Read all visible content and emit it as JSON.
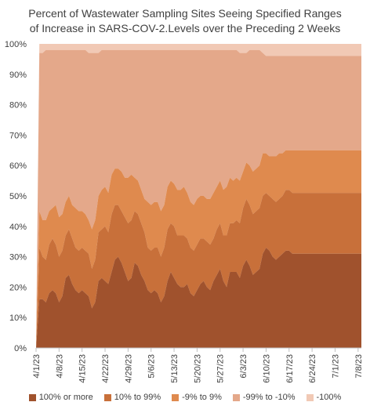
{
  "chart_data": {
    "type": "area",
    "stacked": true,
    "title_line1": "Percent of Wastewater Sampling Sites Seeing Specified Ranges",
    "title_line2": "of Increase in SARS-COV-2.Levels over the Preceding 2 Weeks",
    "xlabel": "",
    "ylabel": "",
    "ylim": [
      0,
      100
    ],
    "y_ticks": [
      "0%",
      "10%",
      "20%",
      "30%",
      "40%",
      "50%",
      "60%",
      "70%",
      "80%",
      "90%",
      "100%"
    ],
    "x_ticks": [
      {
        "label": "4/1/23",
        "day": 0
      },
      {
        "label": "4/8/23",
        "day": 7
      },
      {
        "label": "4/15/23",
        "day": 14
      },
      {
        "label": "4/22/23",
        "day": 21
      },
      {
        "label": "4/29/23",
        "day": 28
      },
      {
        "label": "5/6/23",
        "day": 35
      },
      {
        "label": "5/13/23",
        "day": 42
      },
      {
        "label": "5/20/23",
        "day": 49
      },
      {
        "label": "5/27/23",
        "day": 56
      },
      {
        "label": "6/3/23",
        "day": 63
      },
      {
        "label": "6/10/23",
        "day": 70
      },
      {
        "label": "6/17/23",
        "day": 77
      },
      {
        "label": "6/24/23",
        "day": 84
      },
      {
        "label": "7/1/23",
        "day": 91
      },
      {
        "label": "7/8/23",
        "day": 98
      }
    ],
    "x_days": [
      0,
      1,
      2,
      3,
      4,
      5,
      6,
      7,
      8,
      9,
      10,
      11,
      12,
      13,
      14,
      15,
      16,
      17,
      18,
      19,
      20,
      21,
      22,
      23,
      24,
      25,
      26,
      27,
      28,
      29,
      30,
      31,
      32,
      33,
      34,
      35,
      36,
      37,
      38,
      39,
      40,
      41,
      42,
      43,
      44,
      45,
      46,
      47,
      48,
      49,
      50,
      51,
      52,
      53,
      54,
      55,
      56,
      57,
      58,
      59,
      60,
      61,
      62,
      63,
      64,
      65,
      66,
      67,
      68,
      69,
      70,
      71,
      72,
      73,
      74,
      75,
      76,
      77,
      78,
      79,
      80,
      81,
      82,
      83,
      84,
      85,
      86,
      87,
      88,
      89,
      90,
      91,
      92,
      93,
      94,
      95,
      96,
      97,
      98,
      99
    ],
    "series": [
      {
        "name": "100% or more",
        "color": "#a0522d",
        "values": [
          0,
          16,
          16,
          15,
          18,
          19,
          18,
          15,
          17,
          23,
          24,
          21,
          19,
          18,
          19,
          18,
          17,
          13,
          15,
          22,
          23,
          22,
          21,
          25,
          29,
          30,
          28,
          25,
          22,
          23,
          28,
          27,
          24,
          22,
          19,
          18,
          19,
          18,
          15,
          17,
          22,
          25,
          23,
          21,
          20,
          20,
          21,
          18,
          17,
          19,
          21,
          22,
          20,
          19,
          22,
          24,
          26,
          22,
          20,
          25,
          25,
          25,
          23,
          27,
          29,
          27,
          24,
          25,
          26,
          31,
          33,
          32,
          30,
          29,
          30,
          31,
          32,
          32,
          31,
          31,
          31,
          31,
          31,
          31,
          31,
          31,
          31,
          31,
          31,
          31,
          31,
          31,
          31,
          31,
          31,
          31,
          31,
          31,
          31,
          31
        ]
      },
      {
        "name": "10% to 99%",
        "color": "#c8703a",
        "values": [
          0,
          33,
          30,
          29,
          34,
          36,
          34,
          30,
          32,
          37,
          39,
          36,
          33,
          32,
          33,
          32,
          31,
          26,
          29,
          38,
          39,
          40,
          38,
          44,
          47,
          47,
          45,
          43,
          41,
          42,
          45,
          44,
          41,
          38,
          33,
          32,
          33,
          33,
          30,
          33,
          39,
          41,
          40,
          37,
          37,
          37,
          36,
          33,
          32,
          34,
          36,
          36,
          35,
          34,
          36,
          39,
          41,
          37,
          37,
          41,
          41,
          42,
          41,
          46,
          49,
          47,
          44,
          45,
          46,
          50,
          51,
          50,
          49,
          48,
          49,
          50,
          52,
          52,
          51,
          51,
          51,
          51,
          51,
          51,
          51,
          51,
          51,
          51,
          51,
          51,
          51,
          51,
          51,
          51,
          51,
          51,
          51,
          51,
          51,
          51
        ]
      },
      {
        "name": "-9% to 9%",
        "color": "#df8a4e",
        "values": [
          0,
          45,
          42,
          42,
          45,
          46,
          47,
          43,
          44,
          48,
          50,
          47,
          46,
          45,
          45,
          44,
          42,
          39,
          42,
          50,
          52,
          53,
          51,
          57,
          59,
          59,
          58,
          56,
          56,
          57,
          56,
          55,
          52,
          49,
          48,
          47,
          48,
          48,
          45,
          47,
          53,
          55,
          54,
          52,
          52,
          53,
          51,
          48,
          47,
          49,
          50,
          50,
          49,
          49,
          51,
          53,
          55,
          52,
          53,
          56,
          55,
          56,
          55,
          58,
          61,
          60,
          58,
          59,
          60,
          64,
          64,
          63,
          63,
          63,
          64,
          64,
          65,
          65,
          65,
          65,
          65,
          65,
          65,
          65,
          65,
          65,
          65,
          65,
          65,
          65,
          65,
          65,
          65,
          65,
          65,
          65,
          65,
          65,
          65,
          65
        ]
      },
      {
        "name": "-99% to -10%",
        "color": "#e4a88a",
        "values": [
          0,
          97,
          97,
          98,
          98,
          98,
          98,
          98,
          98,
          98,
          98,
          98,
          98,
          98,
          98,
          98,
          97,
          97,
          97,
          97,
          98,
          98,
          98,
          98,
          98,
          98,
          98,
          98,
          98,
          98,
          98,
          98,
          98,
          98,
          98,
          98,
          98,
          98,
          98,
          98,
          98,
          98,
          98,
          98,
          98,
          98,
          98,
          98,
          98,
          98,
          98,
          98,
          98,
          98,
          98,
          98,
          98,
          98,
          98,
          98,
          98,
          98,
          97,
          97,
          97,
          98,
          98,
          98,
          98,
          97,
          96,
          96,
          96,
          96,
          96,
          96,
          96,
          96,
          96,
          96,
          96,
          96,
          96,
          96,
          96,
          96,
          96,
          96,
          96,
          96,
          96,
          96,
          96,
          96,
          96,
          96,
          96,
          96,
          96,
          96
        ]
      },
      {
        "name": "-100%",
        "color": "#f1c9b5",
        "values": [
          0,
          100,
          100,
          100,
          100,
          100,
          100,
          100,
          100,
          100,
          100,
          100,
          100,
          100,
          100,
          100,
          100,
          100,
          100,
          100,
          100,
          100,
          100,
          100,
          100,
          100,
          100,
          100,
          100,
          100,
          100,
          100,
          100,
          100,
          100,
          100,
          100,
          100,
          100,
          100,
          100,
          100,
          100,
          100,
          100,
          100,
          100,
          100,
          100,
          100,
          100,
          100,
          100,
          100,
          100,
          100,
          100,
          100,
          100,
          100,
          100,
          100,
          100,
          100,
          100,
          100,
          100,
          100,
          100,
          100,
          100,
          100,
          100,
          100,
          100,
          100,
          100,
          100,
          100,
          100,
          100,
          100,
          100,
          100,
          100,
          100,
          100,
          100,
          100,
          100,
          100,
          100,
          100,
          100,
          100,
          100,
          100,
          100,
          100,
          100
        ]
      }
    ],
    "values_note_hidden": "",
    "grid": false,
    "legend_position": "bottom"
  }
}
